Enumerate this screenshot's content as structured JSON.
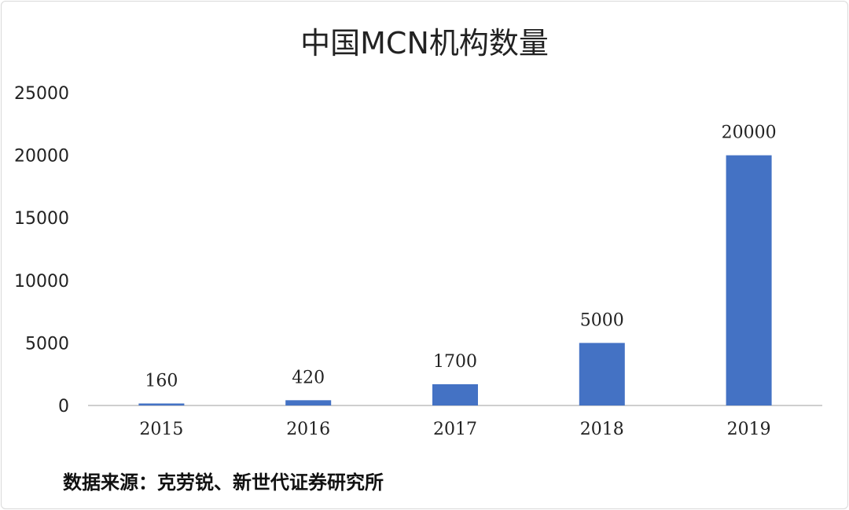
{
  "title": "中国MCN机构数量",
  "source": "数据来源：克劳锐、新世代证券研究所",
  "colors": {
    "bar": "#4472C4",
    "axis": "#bfbfbf",
    "text": "#222222"
  },
  "chart_data": {
    "type": "bar",
    "title": "中国MCN机构数量",
    "categories": [
      "2015",
      "2016",
      "2017",
      "2018",
      "2019"
    ],
    "values": [
      160,
      420,
      1700,
      5000,
      20000
    ],
    "data_labels": [
      "160",
      "420",
      "1700",
      "5000",
      "20000"
    ],
    "ylim": [
      0,
      25000
    ],
    "yticks": [
      0,
      5000,
      10000,
      15000,
      20000,
      25000
    ],
    "xlabel": "",
    "ylabel": "",
    "grid": false,
    "legend": "none"
  }
}
